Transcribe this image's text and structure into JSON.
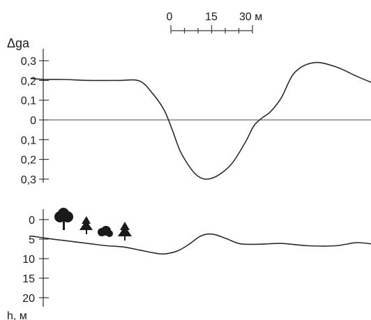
{
  "chart_data": [
    {
      "type": "line",
      "title": "",
      "ylabel": "Δga",
      "y_tick_labels": [
        "0,3",
        "0,2",
        "0,1",
        "0",
        "0,1",
        "0,2",
        "0,3"
      ],
      "y_ticks": [
        0.3,
        0.2,
        0.1,
        0,
        -0.1,
        -0.2,
        -0.3
      ],
      "ylim": [
        -0.35,
        0.35
      ],
      "xlim": [
        -55,
        78
      ],
      "zero_line": true,
      "series": [
        {
          "x": [
            -52,
            -47,
            -40,
            -30,
            -20,
            -12,
            -7,
            -3,
            0,
            3,
            7,
            10,
            13,
            17,
            22,
            27,
            30,
            33,
            36,
            40,
            45,
            52,
            60,
            68,
            75
          ],
          "values": [
            0.21,
            0.205,
            0.205,
            0.2,
            0.2,
            0.197,
            0.13,
            0.05,
            -0.05,
            -0.16,
            -0.25,
            -0.29,
            -0.3,
            -0.28,
            -0.22,
            -0.11,
            -0.03,
            0.01,
            0.04,
            0.11,
            0.24,
            0.29,
            0.27,
            0.22,
            0.18
          ]
        }
      ]
    },
    {
      "type": "line",
      "ylabel": "h, м",
      "y_tick_labels": [
        "0",
        "5",
        "10",
        "15",
        "20"
      ],
      "y_ticks": [
        0,
        5,
        10,
        15,
        20
      ],
      "ylim": [
        -4,
        24
      ],
      "inverted": true,
      "xlim": [
        -55,
        78
      ],
      "series": [
        {
          "x": [
            -52,
            -45,
            -38,
            -30,
            -24,
            -18,
            -12,
            -7,
            -3,
            2,
            6,
            10,
            13,
            16,
            20,
            25,
            32,
            40,
            50,
            60,
            68,
            75
          ],
          "values": [
            4.2,
            4.9,
            5.5,
            6.2,
            6.7,
            7.0,
            7.8,
            8.5,
            8.8,
            8.0,
            6.4,
            4.4,
            3.7,
            3.9,
            4.9,
            6.2,
            6.3,
            6.1,
            6.7,
            6.7,
            5.9,
            6.4
          ]
        }
      ],
      "annotations": [
        "trees",
        "bushes"
      ]
    }
  ],
  "scale_bar": {
    "labels": [
      "0",
      "15",
      "30 м"
    ],
    "values": [
      0,
      15,
      30
    ]
  }
}
